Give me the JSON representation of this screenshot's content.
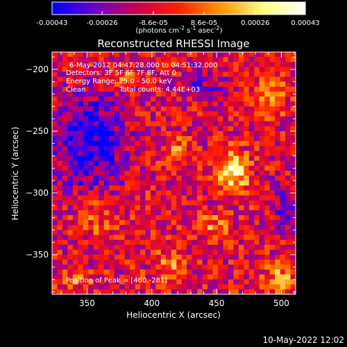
{
  "chart_data": {
    "type": "heatmap",
    "title": "Reconstructed RHESSI Image",
    "xlabel": "Heliocentric X (arcsec)",
    "ylabel": "Heliocentric Y (arcsec)",
    "xlim": [
      323,
      511
    ],
    "ylim": [
      -382,
      -186
    ],
    "x_ticks": [
      350,
      400,
      450,
      500
    ],
    "y_ticks": [
      -200,
      -250,
      -300,
      -350
    ],
    "grid": false,
    "colorbar": {
      "orientation": "horizontal",
      "placement": "top",
      "range": [
        -0.00043,
        0.00043
      ],
      "tick_values": [
        -0.00043,
        -0.00026,
        -8.6e-05,
        8.6e-05,
        0.00026,
        0.00043
      ],
      "tick_labels": [
        "-0.00043",
        "-0.00026",
        "-8.6e-05",
        "8.6e-05",
        "0.00026",
        "0.00043"
      ],
      "unit_label": "(photons cm^-2 s^-1 asec^-2)",
      "colors": [
        "#0000ff",
        "#6a00c8",
        "#c80050",
        "#ff2000",
        "#ff9600",
        "#ffff80",
        "#ffffff"
      ]
    },
    "annotations": {
      "time_range": "6-May-2012 04:47:28.000 to 04:51:32.000",
      "detectors": "Detectors: 3F 5F 6F 7F 8F, Att 0",
      "energy": "Energy Range: 25.0 - 50.0 keV",
      "method": "Clean",
      "counts": "Total counts: 4.44E+03",
      "peak": "Position of Peak = [460,-281]"
    },
    "peak_position": [
      460,
      -281
    ],
    "sources": [
      {
        "x": 460,
        "y": -281,
        "amp": 0.00042,
        "sx": 9,
        "sy": 11
      },
      {
        "x": 490,
        "y": -218,
        "amp": 0.00028,
        "sx": 8,
        "sy": 10
      },
      {
        "x": 418,
        "y": -262,
        "amp": 0.00016,
        "sx": 7,
        "sy": 7
      },
      {
        "x": 445,
        "y": -325,
        "amp": 0.00018,
        "sx": 10,
        "sy": 7
      },
      {
        "x": 412,
        "y": -355,
        "amp": 0.0002,
        "sx": 9,
        "sy": 7
      },
      {
        "x": 497,
        "y": -367,
        "amp": 0.00022,
        "sx": 10,
        "sy": 8
      },
      {
        "x": 355,
        "y": -318,
        "amp": 0.00014,
        "sx": 10,
        "sy": 12
      },
      {
        "x": 375,
        "y": -205,
        "amp": 0.00012,
        "sx": 8,
        "sy": 6
      },
      {
        "x": 340,
        "y": -370,
        "amp": 0.00015,
        "sx": 8,
        "sy": 6
      }
    ],
    "background_level": -9e-05,
    "negative_regions": [
      {
        "x": 350,
        "y": -255,
        "amp": -0.00032,
        "sx": 18,
        "sy": 28
      },
      {
        "x": 505,
        "y": -310,
        "amp": -0.00018,
        "sx": 10,
        "sy": 14
      },
      {
        "x": 440,
        "y": -210,
        "amp": -0.00015,
        "sx": 12,
        "sy": 10
      }
    ]
  },
  "footer": {
    "timestamp": "10-May-2022 12:02"
  }
}
